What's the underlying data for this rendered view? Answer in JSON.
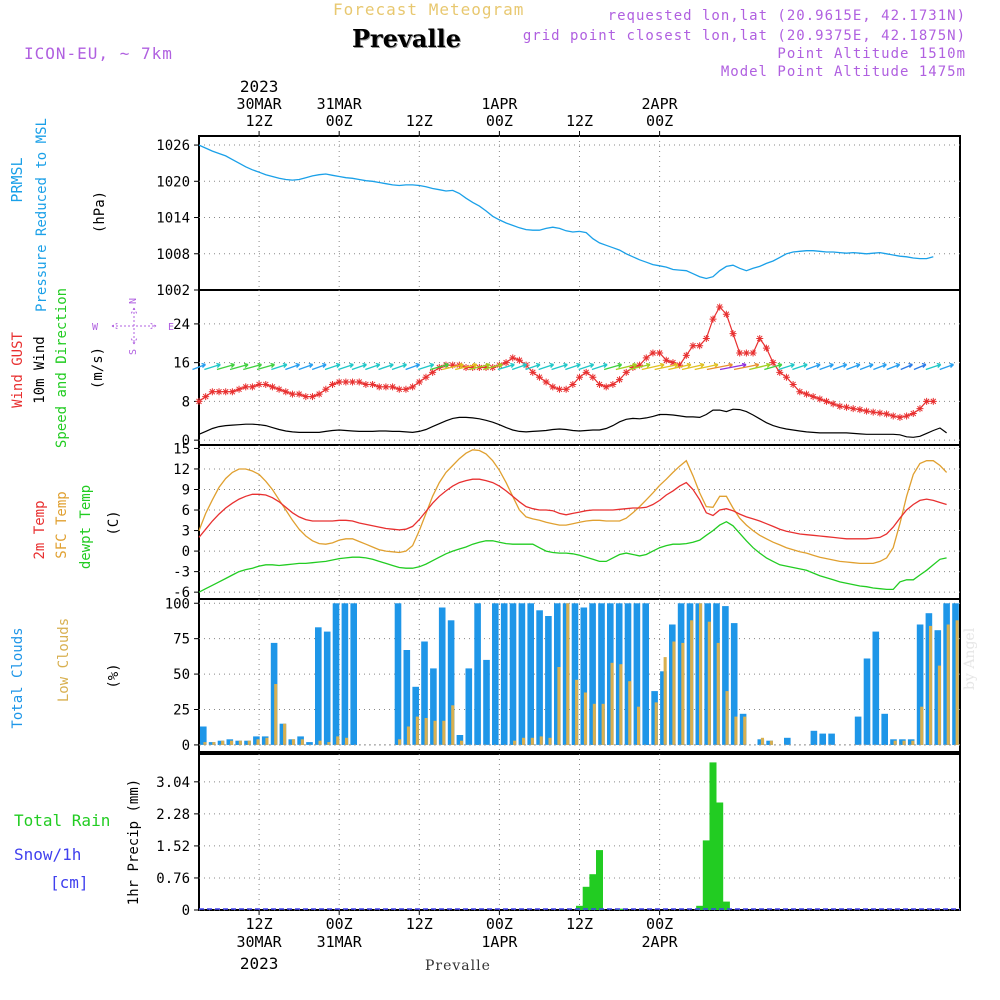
{
  "header": {
    "top_title": "Forecast Meteogram",
    "station": "Prevalle",
    "model": "ICON-EU, ~ 7km",
    "requested": "requested lon,lat (20.9615E, 42.1731N)",
    "grid_point": "grid point closest lon,lat (20.9375E, 42.1875N)",
    "point_altitude": "Point Altitude 1510m",
    "model_altitude": "Model Point Altitude 1475m",
    "footer_station": "Prevalle",
    "credit": "by Angel"
  },
  "time_axis": {
    "top_year": "2023",
    "bottom_year": "2023",
    "ticks": [
      {
        "day": "30MAR",
        "hour": "12Z"
      },
      {
        "day": "31MAR",
        "hour": "00Z"
      },
      {
        "day": "",
        "hour": "12Z"
      },
      {
        "day": "1APR",
        "hour": "00Z"
      },
      {
        "day": "",
        "hour": "12Z"
      },
      {
        "day": "2APR",
        "hour": "00Z"
      }
    ]
  },
  "colors": {
    "pressure": "#1aa0e8",
    "gust": "#e83030",
    "wind": "#000000",
    "temp2m": "#e83030",
    "sfc_temp": "#e0a030",
    "dewpt": "#22cc22",
    "total_clouds": "#1e96e8",
    "low_clouds": "#d8b050",
    "rain": "#22cc22",
    "snow": "#4040ee",
    "purple": "#b060e0"
  },
  "chart_data": [
    {
      "type": "line",
      "panel": "pressure",
      "ylabel_lines": [
        "PRMSL",
        "Pressure Reduced to MSL"
      ],
      "unit": "(hPa)",
      "yticks": [
        1002,
        1008,
        1014,
        1020,
        1026
      ],
      "ylim": [
        1002,
        1027.5
      ],
      "x_start_hours": 0,
      "x_step_hours": 1,
      "series": [
        {
          "values": [
            1026,
            1025.5,
            1025,
            1024.6,
            1024.2,
            1023.6,
            1023,
            1022.4,
            1021.9,
            1021.5,
            1021.1,
            1020.8,
            1020.5,
            1020.3,
            1020.2,
            1020.3,
            1020.6,
            1020.9,
            1021.1,
            1021.2,
            1021,
            1020.8,
            1020.6,
            1020.5,
            1020.3,
            1020.1,
            1020,
            1019.8,
            1019.6,
            1019.4,
            1019.3,
            1019.4,
            1019.4,
            1019.3,
            1019.1,
            1018.8,
            1018.6,
            1018.4,
            1018.5,
            1018,
            1017.2,
            1016.5,
            1015.9,
            1015.1,
            1014.2,
            1013.6,
            1013.1,
            1012.7,
            1012.3,
            1012,
            1011.9,
            1011.9,
            1012.2,
            1012.4,
            1012.2,
            1011.8,
            1011.6,
            1011.7,
            1011.5,
            1010.5,
            1009.8,
            1009.4,
            1009,
            1008.6,
            1008,
            1007.5,
            1007,
            1006.6,
            1006.2,
            1006,
            1005.8,
            1005.4,
            1005.3,
            1005.2,
            1004.7,
            1004.2,
            1003.9,
            1004.2,
            1005.2,
            1005.9,
            1006.1,
            1005.6,
            1005.2,
            1005.6,
            1005.9,
            1006.4,
            1006.8,
            1007.4,
            1008,
            1008.3,
            1008.4,
            1008.5,
            1008.5,
            1008.4,
            1008.3,
            1008.3,
            1008.2,
            1008.1,
            1008.2,
            1008.1,
            1008,
            1008.1,
            1008.2,
            1008,
            1007.8,
            1007.6,
            1007.5,
            1007.3,
            1007.2,
            1007.2,
            1007.5
          ]
        }
      ]
    },
    {
      "type": "line",
      "panel": "wind",
      "ylabel_lines": [
        "Wind GUST",
        "10m Wind",
        "Speed and Direction"
      ],
      "unit": "(m/s)",
      "compass": {
        "n": "N",
        "s": "S",
        "w": "W",
        "e": "E"
      },
      "yticks": [
        0,
        8,
        16,
        24
      ],
      "ylim": [
        -1,
        31
      ],
      "x_start_hours": 0,
      "x_step_hours": 1,
      "series": [
        {
          "name": "Wind GUST",
          "values": [
            8,
            9,
            10,
            10,
            10,
            10,
            10.5,
            11,
            11,
            11.5,
            11.5,
            11,
            10.5,
            10,
            9.5,
            9.5,
            9,
            9,
            9.5,
            10.5,
            11.5,
            12,
            12,
            12,
            12,
            11.5,
            11.5,
            11,
            11,
            11,
            10.5,
            10.5,
            11,
            12,
            13,
            14,
            15,
            15.5,
            15.5,
            15.5,
            15,
            15,
            15,
            15,
            15,
            15.5,
            16,
            17,
            16.5,
            15.5,
            14,
            13,
            12,
            11,
            10.5,
            10.5,
            11.5,
            13,
            14,
            13,
            11.5,
            11,
            11.5,
            12.5,
            14,
            15,
            15.5,
            17,
            18,
            18,
            16.5,
            16,
            15.5,
            17.5,
            19.5,
            19.5,
            21,
            25,
            27.5,
            26,
            22,
            18,
            18,
            18,
            21,
            19,
            16,
            14,
            13,
            11.5,
            10,
            9.5,
            9,
            8.5,
            8,
            7.5,
            7,
            6.8,
            6.5,
            6.3,
            6,
            5.8,
            5.6,
            5.4,
            5,
            4.7,
            5,
            5.5,
            6.5,
            8,
            8
          ]
        },
        {
          "name": "10m Wind",
          "values": [
            1.2,
            1.8,
            2.4,
            2.8,
            3,
            3.1,
            3.2,
            3.3,
            3.3,
            3.2,
            3,
            2.6,
            2.2,
            1.9,
            1.7,
            1.6,
            1.6,
            1.6,
            1.6,
            1.8,
            2,
            2.1,
            2,
            1.9,
            1.8,
            1.8,
            1.8,
            1.9,
            1.9,
            1.8,
            1.8,
            1.7,
            1.6,
            1.8,
            2.2,
            2.8,
            3.4,
            4,
            4.5,
            4.7,
            4.7,
            4.6,
            4.4,
            4.1,
            3.7,
            3.2,
            2.6,
            2.1,
            1.8,
            1.7,
            1.8,
            1.9,
            2,
            2.2,
            2.3,
            2.2,
            2,
            1.9,
            2,
            2.1,
            2.1,
            2.4,
            3,
            3.8,
            4.3,
            4.5,
            4.4,
            4.6,
            4.9,
            5.3,
            5.3,
            5.2,
            5,
            4.8,
            4.8,
            4.7,
            5.3,
            6.2,
            6.2,
            5.9,
            6.4,
            6.3,
            5.9,
            5.2,
            4.4,
            3.6,
            3,
            2.6,
            2.3,
            2.1,
            1.9,
            1.7,
            1.6,
            1.5,
            1.5,
            1.5,
            1.5,
            1.5,
            1.4,
            1.3,
            1.2,
            1.2,
            1.2,
            1.2,
            1.2,
            1.1,
            0.7,
            0.6,
            0.8,
            1.4,
            2,
            2.5,
            1.5
          ]
        }
      ]
    },
    {
      "type": "line",
      "panel": "temperature",
      "ylabel_lines": [
        "2m Temp",
        "SFC Temp",
        "dewpt Temp"
      ],
      "unit": "(C)",
      "yticks": [
        -6,
        -3,
        0,
        3,
        6,
        9,
        12,
        15
      ],
      "ylim": [
        -7,
        15.5
      ],
      "x_start_hours": 0,
      "x_step_hours": 1,
      "series": [
        {
          "name": "2m Temp",
          "values": [
            2,
            3.2,
            4.4,
            5.4,
            6.3,
            7,
            7.6,
            8,
            8.3,
            8.3,
            8.2,
            7.8,
            7.2,
            6.4,
            5.6,
            5,
            4.6,
            4.4,
            4.4,
            4.4,
            4.4,
            4.5,
            4.5,
            4.4,
            4.1,
            3.9,
            3.7,
            3.5,
            3.3,
            3.2,
            3.1,
            3.2,
            3.6,
            4.6,
            5.8,
            7,
            8,
            8.8,
            9.5,
            10,
            10.3,
            10.5,
            10.5,
            10.3,
            10,
            9.5,
            8.8,
            8,
            7.2,
            6.5,
            6.2,
            6,
            6,
            5.9,
            5.5,
            5.3,
            5.5,
            5.7,
            5.9,
            6,
            6,
            6,
            6,
            6.1,
            6.2,
            6.3,
            6.3,
            6.4,
            6.8,
            7.4,
            8.2,
            8.8,
            9.5,
            10,
            9,
            7.5,
            5.6,
            5.2,
            6,
            6.2,
            5.9,
            5.4,
            5,
            4.7,
            4.4,
            4,
            3.6,
            3.2,
            2.9,
            2.7,
            2.5,
            2.4,
            2.3,
            2.2,
            2.1,
            2,
            1.9,
            1.8,
            1.8,
            1.8,
            1.8,
            1.9,
            2,
            2.5,
            3.5,
            4.8,
            6,
            6.8,
            7.4,
            7.6,
            7.4,
            7.1,
            6.8
          ]
        },
        {
          "name": "SFC Temp",
          "values": [
            3,
            5.5,
            7.5,
            9.3,
            10.6,
            11.5,
            12,
            12,
            11.7,
            11.2,
            10.2,
            9,
            7.5,
            6,
            4.5,
            3.2,
            2.2,
            1.5,
            1.1,
            1,
            1.2,
            1.6,
            1.8,
            1.8,
            1.4,
            1,
            0.6,
            0.2,
            0,
            -0.1,
            -0.2,
            0,
            0.8,
            3,
            5.5,
            8,
            10,
            11.5,
            12.5,
            13.5,
            14.3,
            14.8,
            14.7,
            14.2,
            13.2,
            11.8,
            10,
            8,
            6,
            5,
            4.7,
            4.5,
            4.2,
            4,
            3.8,
            3.8,
            4,
            4.2,
            4.4,
            4.5,
            4.5,
            4.4,
            4.4,
            4.4,
            4.8,
            5.6,
            6.5,
            7.5,
            8.5,
            9.6,
            10.5,
            11.5,
            12.4,
            13.2,
            11,
            8.5,
            6.5,
            6.4,
            8,
            8,
            6.3,
            4.8,
            3.8,
            3,
            2.3,
            1.8,
            1.3,
            0.9,
            0.5,
            0.2,
            -0.1,
            -0.3,
            -0.6,
            -0.9,
            -1.1,
            -1.3,
            -1.5,
            -1.6,
            -1.7,
            -1.8,
            -1.8,
            -1.8,
            -1.5,
            -1,
            0.5,
            4,
            8,
            11.2,
            12.8,
            13.2,
            13.2,
            12.5,
            11.5
          ]
        },
        {
          "name": "dewpt Temp",
          "values": [
            -6,
            -5.5,
            -5,
            -4.5,
            -4,
            -3.5,
            -3,
            -2.7,
            -2.5,
            -2.2,
            -2,
            -2,
            -2.1,
            -2,
            -1.9,
            -1.8,
            -1.8,
            -1.7,
            -1.6,
            -1.5,
            -1.3,
            -1.1,
            -1,
            -0.9,
            -0.9,
            -1,
            -1.2,
            -1.5,
            -1.8,
            -2.1,
            -2.4,
            -2.5,
            -2.5,
            -2.3,
            -1.9,
            -1.4,
            -0.9,
            -0.4,
            0,
            0.3,
            0.6,
            1,
            1.3,
            1.5,
            1.5,
            1.3,
            1.1,
            1,
            1,
            1,
            1,
            0.5,
            0,
            -0.2,
            -0.3,
            -0.3,
            -0.4,
            -0.6,
            -0.9,
            -1.2,
            -1.5,
            -1.5,
            -1,
            -0.5,
            -0.3,
            -0.5,
            -0.7,
            -0.5,
            0,
            0.5,
            0.8,
            1,
            1,
            1.1,
            1.3,
            1.6,
            2.3,
            3,
            3.8,
            4.3,
            3.7,
            2.6,
            1.5,
            0.5,
            -0.3,
            -1,
            -1.5,
            -2,
            -2.2,
            -2.4,
            -2.6,
            -2.8,
            -3.2,
            -3.6,
            -3.9,
            -4.2,
            -4.5,
            -4.7,
            -4.9,
            -5.1,
            -5.2,
            -5.4,
            -5.5,
            -5.6,
            -5.6,
            -4.5,
            -4.2,
            -4.2,
            -3.5,
            -2.8,
            -2,
            -1.2,
            -1
          ]
        }
      ]
    },
    {
      "type": "bar",
      "panel": "clouds",
      "ylabel_lines": [
        "Total Clouds",
        "Low Clouds"
      ],
      "unit": "(%)",
      "yticks": [
        0,
        25,
        50,
        75,
        100
      ],
      "ylim": [
        -5,
        103
      ],
      "x_start_hours": 0,
      "x_step_hours": 1,
      "series": [
        {
          "name": "Total Clouds",
          "values": [
            13,
            2,
            3,
            4,
            3,
            3,
            6,
            6,
            72,
            15,
            4,
            6,
            2,
            83,
            80,
            100,
            100,
            100,
            0,
            0,
            0,
            0,
            100,
            67,
            41,
            73,
            54,
            97,
            88,
            7,
            54,
            100,
            60,
            100,
            100,
            100,
            100,
            100,
            95,
            91,
            100,
            100,
            100,
            97,
            100,
            100,
            100,
            100,
            100,
            100,
            100,
            38,
            52,
            85,
            100,
            100,
            100,
            100,
            100,
            98,
            86,
            22,
            0,
            4,
            3,
            0,
            5,
            0,
            0,
            10,
            8,
            8,
            0,
            0,
            20,
            61,
            80,
            22,
            4,
            4,
            4,
            85,
            93,
            81,
            100,
            100
          ]
        },
        {
          "name": "Low Clouds",
          "values": [
            2,
            2,
            3,
            3,
            3,
            3,
            4,
            5,
            43,
            15,
            4,
            4,
            0,
            3,
            2,
            6,
            5,
            0,
            0,
            0,
            0,
            0,
            4,
            13,
            20,
            19,
            17,
            17,
            28,
            3,
            0,
            0,
            0,
            0,
            0,
            3,
            5,
            5,
            6,
            5,
            55,
            100,
            46,
            37,
            29,
            29,
            58,
            57,
            45,
            27,
            0,
            30,
            62,
            73,
            72,
            88,
            100,
            87,
            72,
            38,
            20,
            20,
            0,
            5,
            3,
            0,
            0,
            0,
            0,
            0,
            0,
            0,
            0,
            0,
            0,
            0,
            0,
            0,
            3,
            3,
            3,
            27,
            84,
            56,
            85,
            88
          ]
        }
      ]
    },
    {
      "type": "bar",
      "panel": "precipitation",
      "ylabel_lines": [
        "Total  Rain",
        "Snow/1h",
        "[cm]"
      ],
      "unit": "1hr Precip (mm)",
      "yticks": [
        0,
        0.76,
        1.52,
        2.28,
        3.04
      ],
      "ylim": [
        0,
        3.7
      ],
      "bar_hours": [
        57,
        58,
        59,
        60,
        63,
        75,
        76,
        77,
        78,
        79,
        80
      ],
      "series": [
        {
          "name": "Total Rain",
          "values": [
            0.1,
            0.55,
            0.85,
            1.42,
            0.03,
            0.1,
            1.65,
            3.5,
            2.55,
            0.2,
            0
          ]
        }
      ]
    }
  ]
}
